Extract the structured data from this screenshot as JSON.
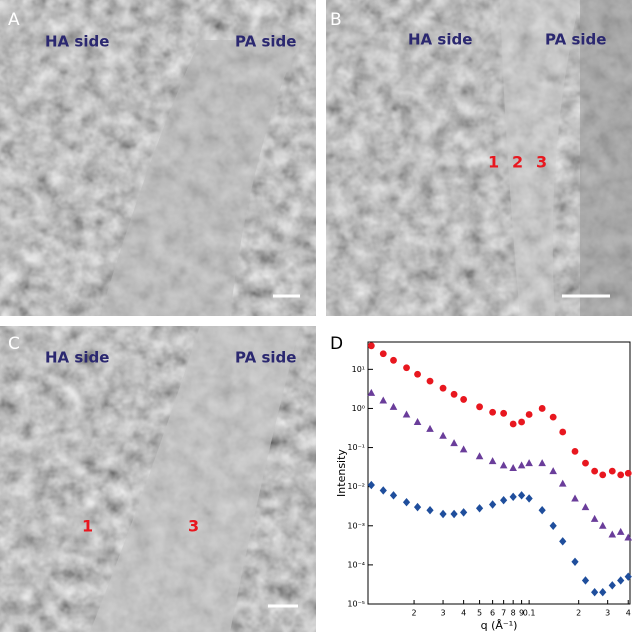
{
  "panels": [
    {
      "letter": "A",
      "labels": [
        "HA side",
        "PA side"
      ],
      "markers": []
    },
    {
      "letter": "B",
      "labels": [
        "HA side",
        "PA side"
      ],
      "markers": [
        "1",
        "2",
        "3"
      ]
    },
    {
      "letter": "C",
      "labels": [
        "HA side",
        "PA side"
      ],
      "markers": [
        "1",
        "3"
      ]
    }
  ],
  "chart_data": {
    "type": "scatter",
    "letter": "D",
    "x_label": "q (Å⁻¹)",
    "y_label": "Intensity",
    "log_x": true,
    "log_y": true,
    "xlim": [
      0.0105,
      0.41
    ],
    "ylim": [
      1e-05,
      50
    ],
    "xticks": [
      {
        "value": 0.02,
        "label": "2"
      },
      {
        "value": 0.03,
        "label": "3"
      },
      {
        "value": 0.04,
        "label": "4"
      },
      {
        "value": 0.05,
        "label": "5"
      },
      {
        "value": 0.06,
        "label": "6"
      },
      {
        "value": 0.07,
        "label": "7"
      },
      {
        "value": 0.08,
        "label": "8"
      },
      {
        "value": 0.09,
        "label": "9"
      },
      0.1,
      {
        "value": 0.2,
        "label": "2"
      },
      {
        "value": 0.3,
        "label": "3"
      },
      {
        "value": 0.4,
        "label": "4"
      }
    ],
    "yticks": [
      {
        "value": 10,
        "label": "10¹"
      },
      {
        "value": 1,
        "label": "10⁰"
      },
      {
        "value": 0.1,
        "label": "10⁻¹"
      },
      {
        "value": 0.01,
        "label": "10⁻²"
      },
      {
        "value": 0.001,
        "label": "10⁻³"
      },
      {
        "value": 0.0001,
        "label": "10⁻⁴"
      },
      {
        "value": 1e-05,
        "label": "10⁻⁵"
      }
    ],
    "x": [
      0.011,
      0.013,
      0.015,
      0.018,
      0.021,
      0.025,
      0.03,
      0.035,
      0.04,
      0.05,
      0.06,
      0.07,
      0.08,
      0.09,
      0.1,
      0.12,
      0.14,
      0.16,
      0.19,
      0.22,
      0.25,
      0.28,
      0.32,
      0.36,
      0.4
    ],
    "series": [
      {
        "color": "#e8171f",
        "marker": "circle",
        "values": [
          40,
          25,
          17,
          11,
          7.5,
          5,
          3.3,
          2.3,
          1.7,
          1.1,
          0.8,
          0.75,
          0.4,
          0.45,
          0.7,
          1.0,
          0.6,
          0.25,
          0.08,
          0.04,
          0.025,
          0.02,
          0.025,
          0.02,
          0.022
        ]
      },
      {
        "color": "#6a3d9a",
        "marker": "triangle",
        "values": [
          2.5,
          1.6,
          1.1,
          0.7,
          0.45,
          0.3,
          0.2,
          0.13,
          0.09,
          0.06,
          0.045,
          0.035,
          0.03,
          0.035,
          0.04,
          0.04,
          0.025,
          0.012,
          0.005,
          0.003,
          0.0015,
          0.001,
          0.0006,
          0.0007,
          0.0005
        ]
      },
      {
        "color": "#1f4e9c",
        "marker": "diamond",
        "values": [
          0.011,
          0.008,
          0.006,
          0.004,
          0.003,
          0.0025,
          0.002,
          0.002,
          0.0022,
          0.0028,
          0.0035,
          0.0045,
          0.0055,
          0.006,
          0.005,
          0.0025,
          0.001,
          0.0004,
          0.00012,
          4e-05,
          2e-05,
          2e-05,
          3e-05,
          4e-05,
          5e-05
        ]
      }
    ]
  }
}
